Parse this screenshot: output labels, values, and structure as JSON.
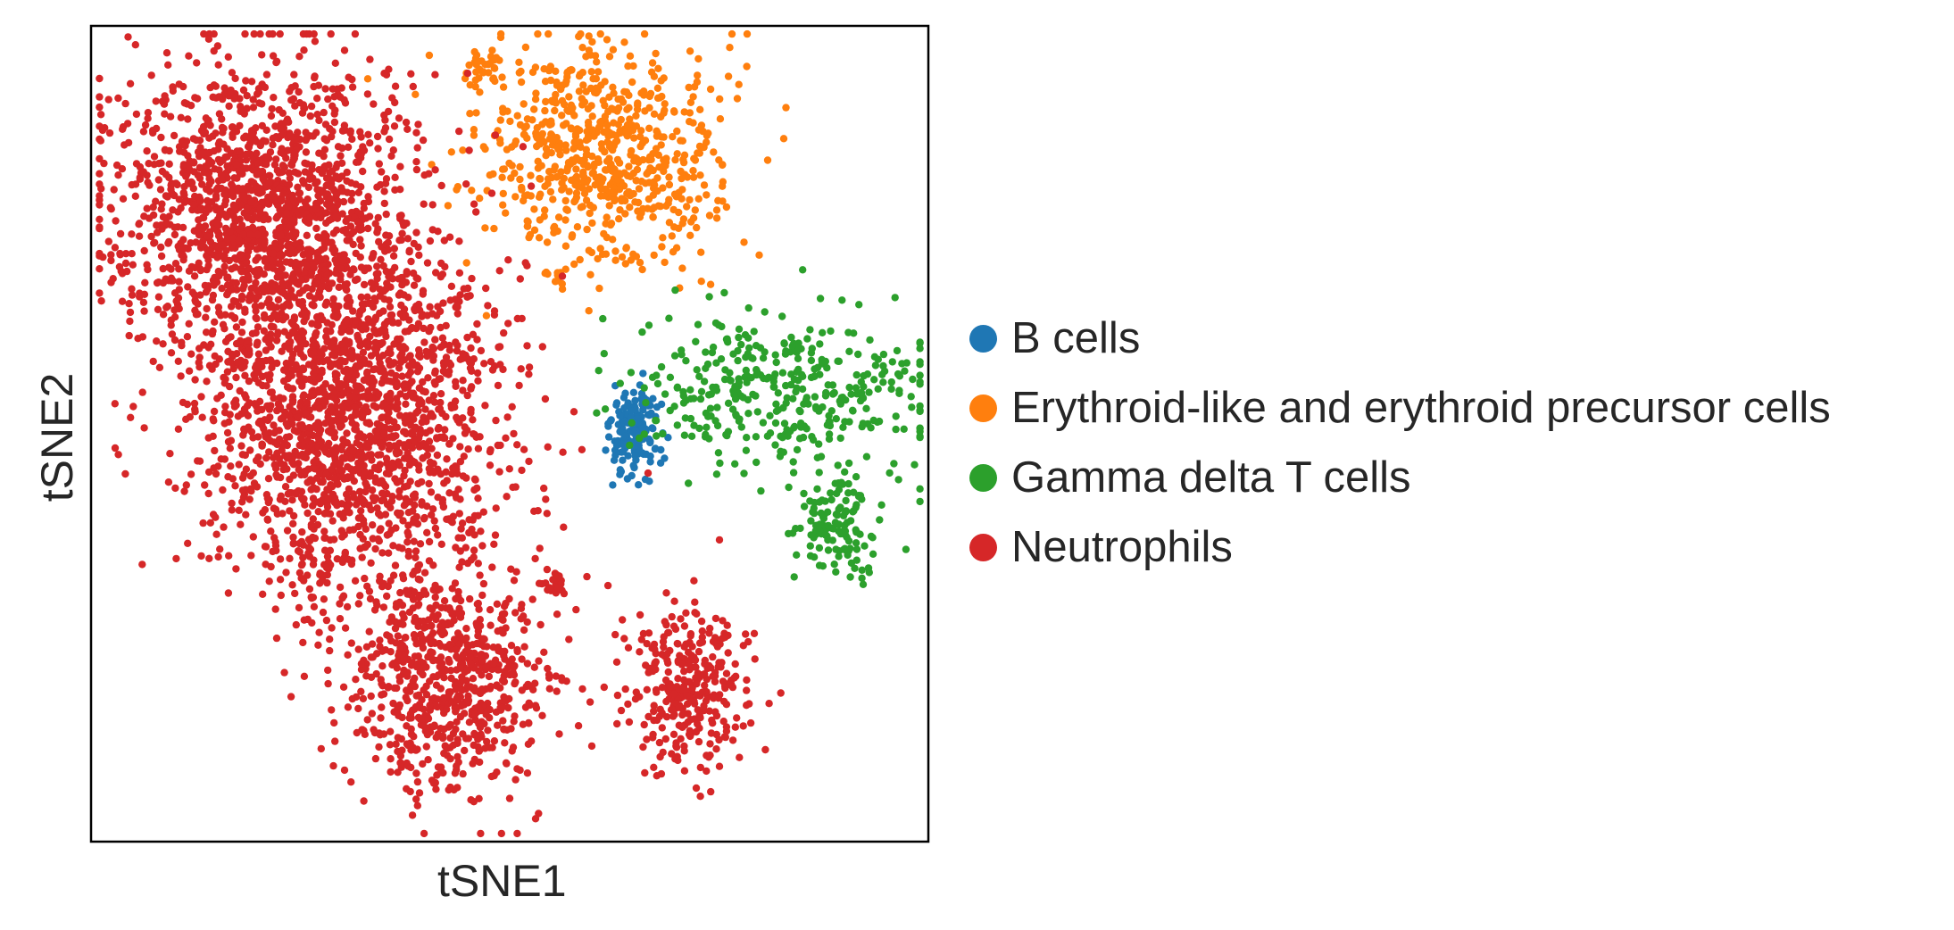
{
  "chart_data": {
    "type": "scatter",
    "title": "",
    "xlabel": "tSNE1",
    "ylabel": "tSNE2",
    "xticks": [],
    "yticks": [],
    "grid": false,
    "legend_placement": "right",
    "xlim": [
      -100,
      100
    ],
    "ylim": [
      -100,
      100
    ],
    "series": [
      {
        "name": "B cells",
        "color": "#1f77b4",
        "clusters": [
          {
            "center": [
              30,
              0
            ],
            "spread": [
              3,
              6
            ],
            "count": 160
          }
        ]
      },
      {
        "name": "Erythroid-like and erythroid precursor cells",
        "color": "#ff7f0e",
        "clusters": [
          {
            "center": [
              22,
              68
            ],
            "spread": [
              14,
              13
            ],
            "count": 700
          },
          {
            "center": [
              -5,
              89
            ],
            "spread": [
              2,
              3
            ],
            "count": 35
          },
          {
            "center": [
              11,
              39
            ],
            "spread": [
              1.5,
              1
            ],
            "count": 12
          }
        ]
      },
      {
        "name": "Gamma delta T cells",
        "color": "#2ca02c",
        "clusters": [
          {
            "center": [
              65,
              12
            ],
            "spread": [
              18,
              10
            ],
            "count": 380
          },
          {
            "center": [
              78,
              -22
            ],
            "spread": [
              5,
              7
            ],
            "count": 130
          }
        ]
      },
      {
        "name": "Neutrophils",
        "color": "#d62728",
        "clusters": [
          {
            "center": [
              -60,
              55
            ],
            "spread": [
              17,
              18
            ],
            "count": 1500
          },
          {
            "center": [
              -38,
              5
            ],
            "spread": [
              18,
              23
            ],
            "count": 1900
          },
          {
            "center": [
              -15,
              -60
            ],
            "spread": [
              12,
              14
            ],
            "count": 700
          },
          {
            "center": [
              11,
              -36
            ],
            "spread": [
              1.5,
              2
            ],
            "count": 22
          },
          {
            "center": [
              43,
              -62
            ],
            "spread": [
              8,
              10
            ],
            "count": 320
          }
        ]
      }
    ]
  }
}
